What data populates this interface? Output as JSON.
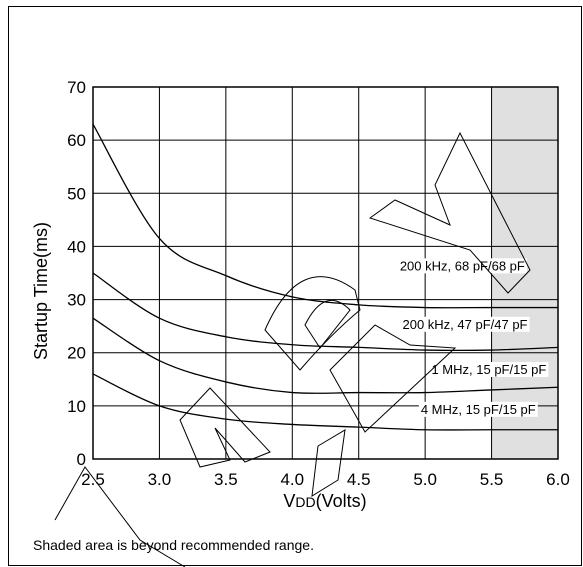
{
  "chart_data": {
    "type": "line",
    "title": "",
    "xlabel": "VDD(Volts)",
    "xlabel_main": "V",
    "xlabel_sub": "DD",
    "xlabel_rest": "(Volts)",
    "ylabel": "Startup Time(ms)",
    "xlim": [
      2.5,
      6.0
    ],
    "ylim": [
      0,
      70
    ],
    "x_ticks": [
      "2.5",
      "3.0",
      "3.5",
      "4.0",
      "4.5",
      "5.0",
      "5.5",
      "6.0"
    ],
    "y_ticks": [
      "0",
      "10",
      "20",
      "30",
      "40",
      "50",
      "60",
      "70"
    ],
    "grid": true,
    "shaded_region": {
      "x_from": 5.5,
      "x_to": 6.0,
      "color": "#e0e0e0"
    },
    "series": [
      {
        "name": "200 kHz, 68 pF/68 pF",
        "x": [
          2.5,
          3.0,
          3.5,
          4.0,
          4.5,
          5.0,
          5.5,
          6.0
        ],
        "y": [
          63,
          41.5,
          34.5,
          30.5,
          29,
          28.5,
          28.5,
          28.5
        ]
      },
      {
        "name": "200 kHz, 47 pF/47 pF",
        "x": [
          2.5,
          3.0,
          3.5,
          4.0,
          4.5,
          5.0,
          5.5,
          6.0
        ],
        "y": [
          35,
          26.5,
          23,
          21.5,
          21,
          20.5,
          20.5,
          21
        ]
      },
      {
        "name": "1 MHz, 15 pF/15 pF",
        "x": [
          2.5,
          3.0,
          3.5,
          4.0,
          4.5,
          5.0,
          5.5,
          6.0
        ],
        "y": [
          26.5,
          18.5,
          14.5,
          12.5,
          12.5,
          12.5,
          13,
          13.5
        ]
      },
      {
        "name": "4 MHz, 15 pF/15 pF",
        "x": [
          2.5,
          3.0,
          3.5,
          4.0,
          4.5,
          5.0,
          5.5,
          6.0
        ],
        "y": [
          16,
          10,
          7.5,
          6.5,
          6,
          5.5,
          5.5,
          5.5
        ]
      }
    ],
    "label_positions": [
      {
        "x": 5.28,
        "y": 35.5
      },
      {
        "x": 5.3,
        "y": 24.5
      },
      {
        "x": 5.48,
        "y": 16
      },
      {
        "x": 5.4,
        "y": 8.5
      }
    ],
    "note": "Shaded area is beyond recommended range.",
    "colors": {
      "line": "#000000",
      "shade": "#e0e0e0",
      "background": "#ffffff"
    }
  }
}
